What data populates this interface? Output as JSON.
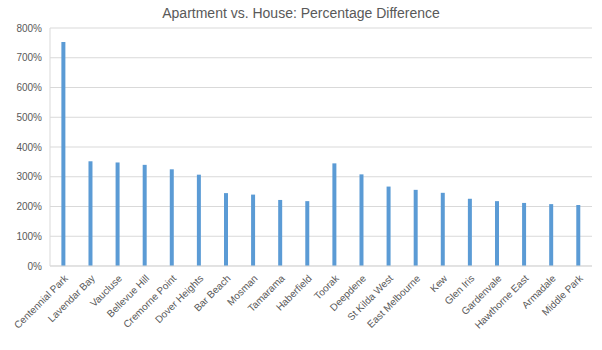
{
  "chart_data": {
    "type": "bar",
    "title": "Apartment vs. House: Percentage Difference",
    "categories": [
      "Centennial Park",
      "Lavendar Bay",
      "Vaucluse",
      "Bellevue Hill",
      "Cremorne Point",
      "Dover Heights",
      "Bar Beach",
      "Mosman",
      "Tamarama",
      "Haberfield",
      "Toorak",
      "Deepdene",
      "St Kilda West",
      "East Melbourne",
      "Kew",
      "Glen Iris",
      "Gardenvale",
      "Hawthorne East",
      "Armadale",
      "Middle Park"
    ],
    "values": [
      753,
      352,
      348,
      340,
      325,
      307,
      245,
      240,
      222,
      218,
      345,
      308,
      267,
      256,
      246,
      226,
      218,
      212,
      208,
      205
    ],
    "color": "#5b9bd5",
    "ylim": [
      0,
      800
    ],
    "yticks": [
      {
        "value": 0,
        "label": "0%"
      },
      {
        "value": 100,
        "label": "100%"
      },
      {
        "value": 200,
        "label": "200%"
      },
      {
        "value": 300,
        "label": "300%"
      },
      {
        "value": 400,
        "label": "400%"
      },
      {
        "value": 500,
        "label": "500%"
      },
      {
        "value": 600,
        "label": "600%"
      },
      {
        "value": 700,
        "label": "700%"
      },
      {
        "value": 800,
        "label": "800%"
      }
    ],
    "grid": true
  }
}
